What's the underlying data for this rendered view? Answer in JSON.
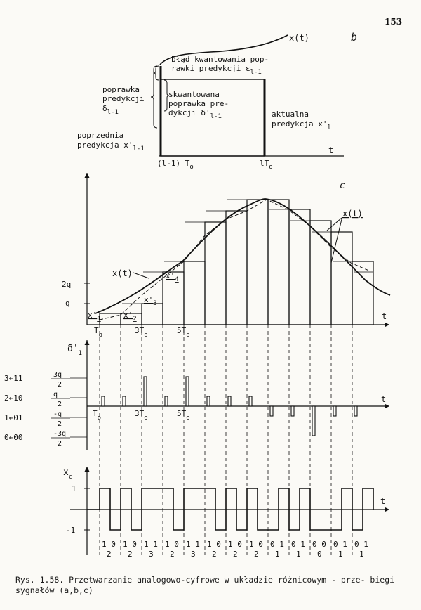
{
  "page_number": "153",
  "panel_b": {
    "letter": "b",
    "signal_label": "x(t)",
    "t_label": "t",
    "label_error": [
      "błąd kwantowania pop-",
      "rawki predykcji ε",
      "l-1"
    ],
    "label_correction": [
      "poprawka",
      "predykcji",
      "δ",
      "l-1"
    ],
    "label_quantized": [
      "skwantowana",
      "poprawka pre-",
      "dykcji δ'",
      "l-1"
    ],
    "label_previous": [
      "poprzednia",
      "predykcja x'",
      "l-1"
    ],
    "label_current": [
      "aktualna",
      "predykcja x'",
      "l"
    ],
    "tick_left": "(l-1) T",
    "tick_right": "lT",
    "tick_sub": "o"
  },
  "panel_c": {
    "letter": "c",
    "t_label": "t",
    "y_ticks": [
      "2q",
      "q"
    ],
    "label_xt": "x(t)",
    "label_xbar": "x(t)",
    "pred_labels": [
      {
        "main": "x'",
        "sub": "1"
      },
      {
        "main": "x'",
        "sub": "2"
      },
      {
        "main": "x'",
        "sub": "3"
      },
      {
        "main": "x'",
        "sub": "4"
      }
    ],
    "x_ticks": [
      "T",
      "3T",
      "5T"
    ],
    "tick_sub": "o"
  },
  "panel_delta": {
    "axis_label": "δ'",
    "axis_sub": "1",
    "t_label": "t",
    "levels": [
      {
        "code_num": "3",
        "code_bits": "11",
        "num": "3q",
        "den": "2"
      },
      {
        "code_num": "2",
        "code_bits": "10",
        "num": "q",
        "den": "2"
      },
      {
        "code_num": "1",
        "code_bits": "01",
        "num": "-q",
        "den": "2"
      },
      {
        "code_num": "0",
        "code_bits": "00",
        "num": "-3q",
        "den": "2"
      }
    ],
    "x_ticks": [
      "T",
      "3T",
      "5T"
    ],
    "tick_sub": "o",
    "pulse_levels": [
      2,
      2,
      3,
      2,
      3,
      2,
      2,
      2,
      1,
      1,
      0,
      1,
      1
    ]
  },
  "panel_xc": {
    "axis_label": "x",
    "axis_sub": "c",
    "t_label": "t",
    "y_ticks": [
      "1",
      "-1"
    ],
    "bit_pairs": [
      "10",
      "10",
      "11",
      "10",
      "11",
      "10",
      "10",
      "10",
      "01",
      "01",
      "00",
      "01",
      "01"
    ],
    "code_values": [
      "2",
      "2",
      "3",
      "2",
      "3",
      "2",
      "2",
      "2",
      "1",
      "1",
      "0",
      "1",
      "1"
    ]
  },
  "caption": "Rys. 1.58. Przetwarzanie analogowo-cyfrowe w układzie różnicowym - prze- biegi sygnałów (a,b,c)"
}
